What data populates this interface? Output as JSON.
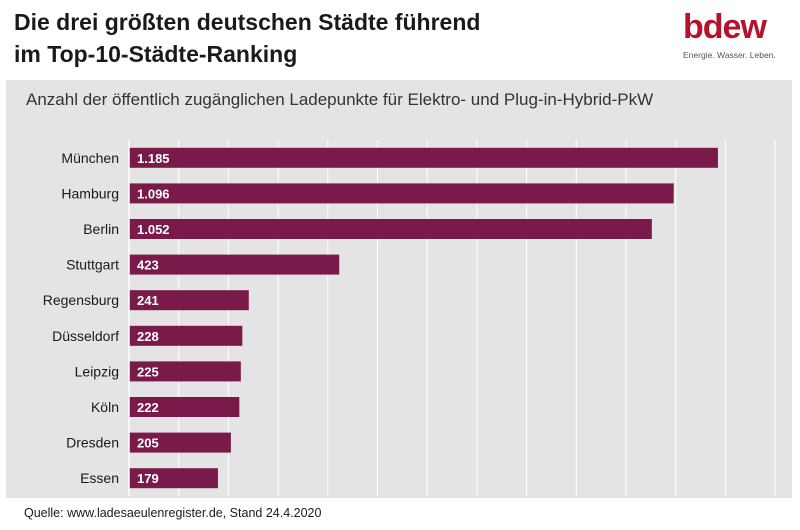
{
  "header": {
    "title_line1": "Die drei größten deutschen Städte führend",
    "title_line2": "im Top-10-Städte-Ranking"
  },
  "logo": {
    "word": "bdew",
    "tagline": "Energie. Wasser. Leben.",
    "color": "#b5122b"
  },
  "chart_data": {
    "type": "bar",
    "orientation": "horizontal",
    "subtitle": "Anzahl der öffentlich zugänglichen Ladepunkte für Elektro- und Plug-in-Hybrid-PkW",
    "categories": [
      "München",
      "Hamburg",
      "Berlin",
      "Stuttgart",
      "Regensburg",
      "Düsseldorf",
      "Leipzig",
      "Köln",
      "Dresden",
      "Essen"
    ],
    "values": [
      1185,
      1096,
      1052,
      423,
      241,
      228,
      225,
      222,
      205,
      179
    ],
    "value_labels": [
      "1.185",
      "1.096",
      "1.052",
      "423",
      "241",
      "228",
      "225",
      "222",
      "205",
      "179"
    ],
    "xlim": [
      0,
      1300
    ],
    "grid": true,
    "bar_color": "#7a1a4a"
  },
  "footer": {
    "source": "Quelle: www.ladesaeulenregister.de, Stand 24.4.2020"
  }
}
